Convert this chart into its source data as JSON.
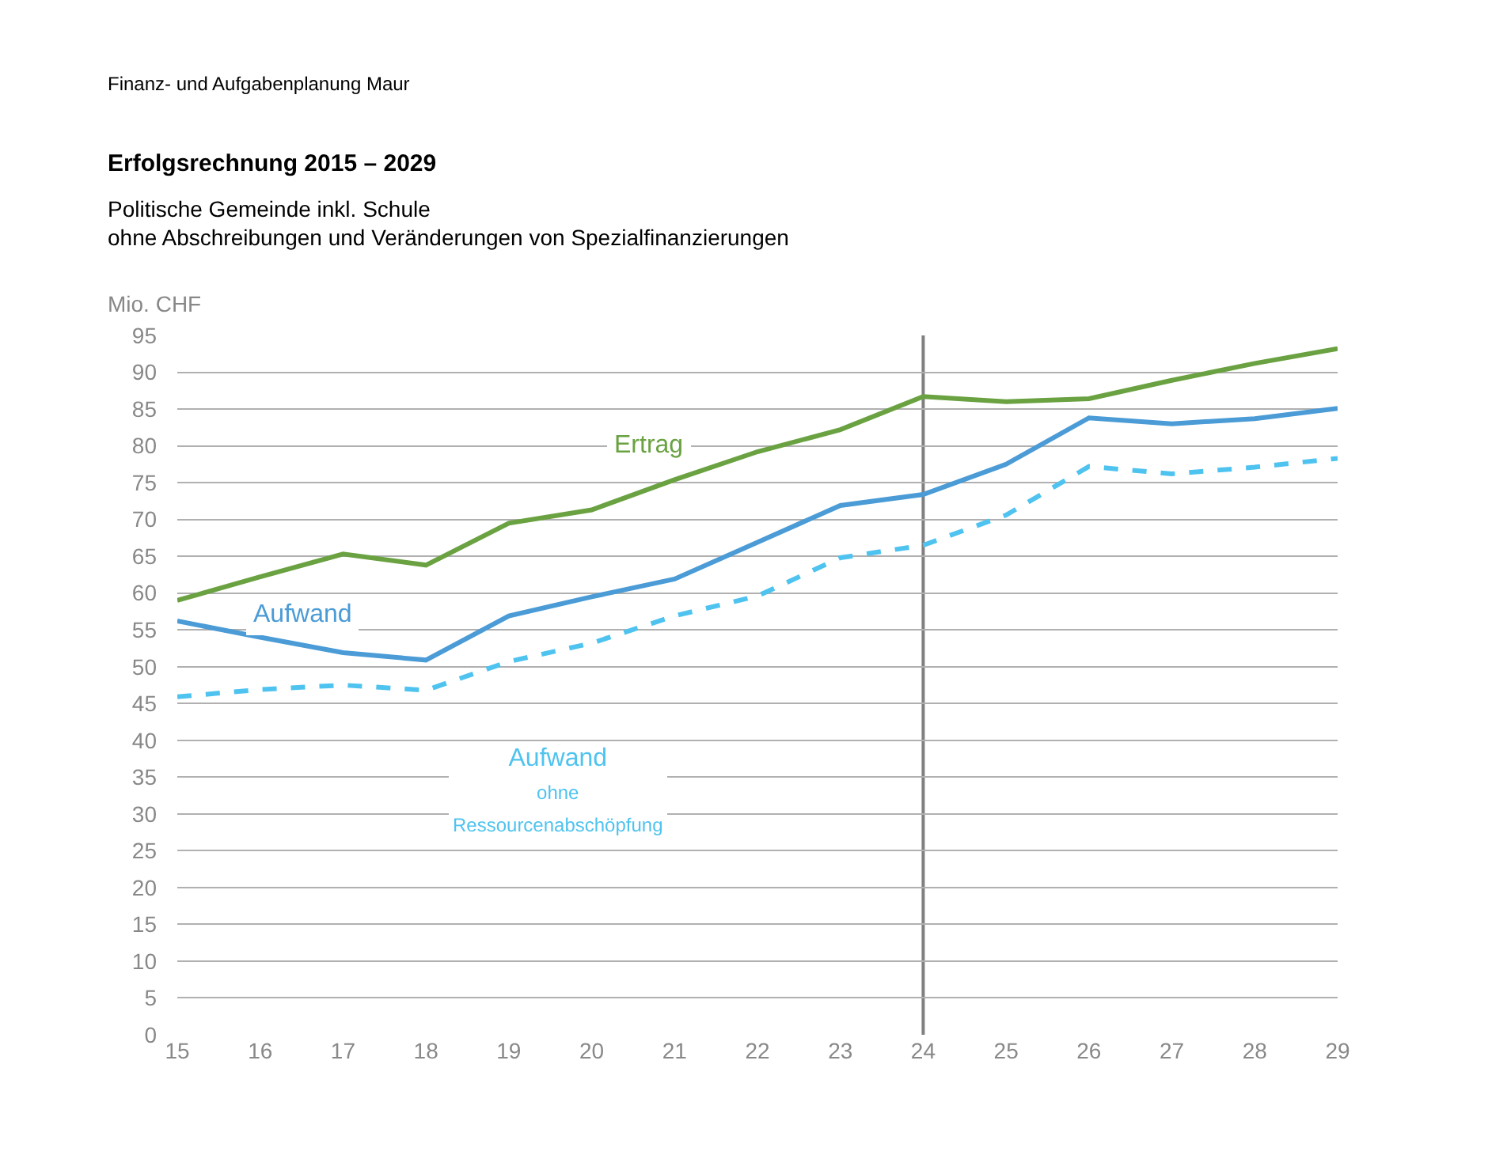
{
  "chart_data": {
    "type": "line",
    "title": "Erfolgsrechnung 2015 – 2029",
    "subtitle": "Politische Gemeinde inkl. Schule\nohne Abschreibungen und Veränderungen von Spezialfinanzierungen",
    "annotations": [
      "Finanz- und Aufgabenplanung Maur"
    ],
    "ylabel": "Mio. CHF",
    "x": [
      15,
      16,
      17,
      18,
      19,
      20,
      21,
      22,
      23,
      24,
      25,
      26,
      27,
      28,
      29
    ],
    "series": [
      {
        "name": "Ertrag",
        "color": "#6aa242",
        "line_style": "solid",
        "values": [
          59,
          62.2,
          65.3,
          63.8,
          69.5,
          71.3,
          75.4,
          79.2,
          82.2,
          86.7,
          86.0,
          86.4,
          88.9,
          91.2,
          93.2
        ]
      },
      {
        "name": "Aufwand",
        "color": "#4a9bd6",
        "line_style": "solid",
        "values": [
          56.2,
          54,
          51.9,
          50.9,
          56.9,
          59.5,
          61.9,
          66.9,
          71.9,
          73.4,
          77.5,
          83.8,
          83.0,
          83.7,
          85.1
        ]
      },
      {
        "name": "Aufwand ohne Ressourcenabschöpfung",
        "color": "#4fc3ef",
        "line_style": "dashed",
        "values": [
          45.9,
          46.9,
          47.5,
          46.8,
          50.7,
          53.2,
          56.9,
          59.6,
          64.8,
          66.5,
          70.6,
          77.2,
          76.2,
          77.1,
          78.3
        ]
      }
    ],
    "xlim": [
      15,
      29
    ],
    "xticks": [
      15,
      16,
      17,
      18,
      19,
      20,
      21,
      22,
      23,
      24,
      25,
      26,
      27,
      28,
      29
    ],
    "ylim": [
      0,
      95
    ],
    "yticks": [
      0,
      5,
      10,
      15,
      20,
      25,
      30,
      35,
      40,
      45,
      50,
      55,
      60,
      65,
      70,
      75,
      80,
      85,
      90,
      95
    ],
    "ref_lines": [
      {
        "axis": "x",
        "value": 24,
        "color": "#808080"
      }
    ],
    "grid": "y",
    "legend": false,
    "marker": "none"
  }
}
